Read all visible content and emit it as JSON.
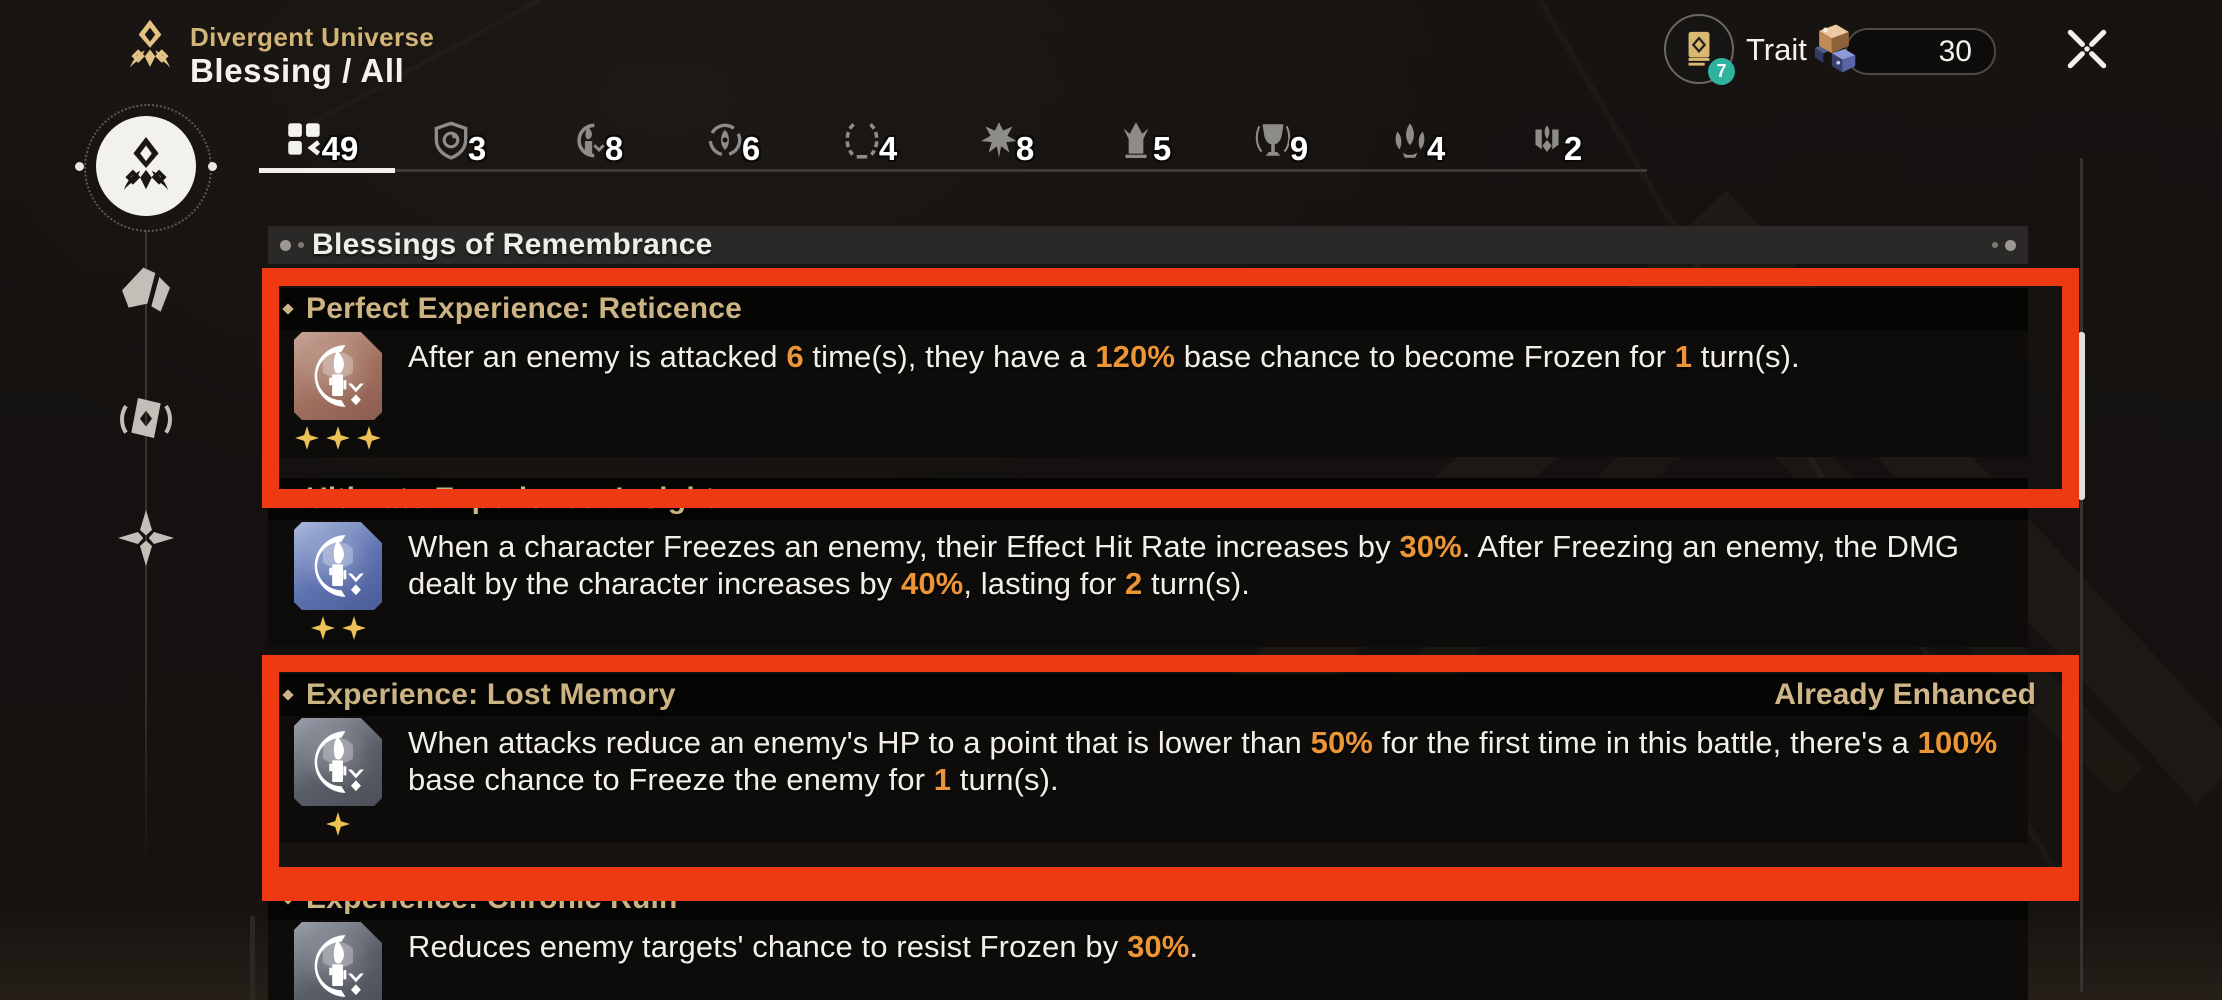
{
  "header": {
    "eyebrow": "Divergent Universe",
    "title": "Blessing / All",
    "trait_label": "Trait",
    "trait_badge_count": "7",
    "currency_amount": "30"
  },
  "tabs": [
    {
      "name": "all",
      "icon": "grid-icon",
      "count": "49",
      "active": true
    },
    {
      "name": "preservation",
      "icon": "shield-icon",
      "count": "3",
      "active": false
    },
    {
      "name": "remembrance",
      "icon": "candle-icon",
      "count": "8",
      "active": false
    },
    {
      "name": "nihility",
      "icon": "eye-swirl-icon",
      "count": "6",
      "active": false
    },
    {
      "name": "abundance",
      "icon": "wreath-icon",
      "count": "4",
      "active": false
    },
    {
      "name": "destruction",
      "icon": "beast-icon",
      "count": "8",
      "active": false
    },
    {
      "name": "elation",
      "icon": "flame-crown-icon",
      "count": "5",
      "active": false
    },
    {
      "name": "harmony",
      "icon": "chalice-icon",
      "count": "9",
      "active": false
    },
    {
      "name": "propagation",
      "icon": "flames-icon",
      "count": "4",
      "active": false
    },
    {
      "name": "hunt",
      "icon": "moth-icon",
      "count": "2",
      "active": false
    }
  ],
  "section_title": "Blessings of Remembrance",
  "blessings": [
    {
      "title": "Perfect Experience: Reticence",
      "stars": 3,
      "grade": "rose",
      "highlighted": true,
      "badge": "",
      "desc": [
        {
          "t": "After an enemy is attacked "
        },
        {
          "t": "6",
          "hl": true
        },
        {
          "t": " time(s), they have a "
        },
        {
          "t": "120%",
          "hl": true
        },
        {
          "t": " base chance to become Frozen for "
        },
        {
          "t": "1",
          "hl": true
        },
        {
          "t": " turn(s)."
        }
      ]
    },
    {
      "title": "Ultimate Experience: Insight",
      "stars": 2,
      "grade": "blue",
      "highlighted": false,
      "badge": "",
      "desc": [
        {
          "t": "When a character Freezes an enemy, their Effect Hit Rate increases by "
        },
        {
          "t": "30%",
          "hl": true
        },
        {
          "t": ". After Freezing an enemy, the DMG dealt by the character increases by "
        },
        {
          "t": "40%",
          "hl": true
        },
        {
          "t": ", lasting for "
        },
        {
          "t": "2",
          "hl": true
        },
        {
          "t": " turn(s)."
        }
      ]
    },
    {
      "title": "Experience: Lost Memory",
      "stars": 1,
      "grade": "gray",
      "highlighted": true,
      "badge": "Already Enhanced",
      "desc": [
        {
          "t": "When attacks reduce an enemy's HP to a point that is lower than "
        },
        {
          "t": "50%",
          "hl": true
        },
        {
          "t": " for the first time in this battle, there's a "
        },
        {
          "t": "100%",
          "hl": true
        },
        {
          "t": " base chance to Freeze the enemy for "
        },
        {
          "t": "1",
          "hl": true
        },
        {
          "t": " turn(s)."
        }
      ]
    },
    {
      "title": "Experience: Chronic Ruin",
      "stars": 1,
      "grade": "gray",
      "highlighted": false,
      "badge": "",
      "desc": [
        {
          "t": "Reduces enemy targets' chance to resist Frozen by "
        },
        {
          "t": "30%",
          "hl": true
        },
        {
          "t": "."
        }
      ]
    }
  ],
  "colors": {
    "accent_gold": "#d2b478",
    "card_title_gold": "#cbb384",
    "highlight_orange": "#ec9537",
    "annotation_red": "#ee3a13",
    "badge_teal": "#2fb39e"
  }
}
